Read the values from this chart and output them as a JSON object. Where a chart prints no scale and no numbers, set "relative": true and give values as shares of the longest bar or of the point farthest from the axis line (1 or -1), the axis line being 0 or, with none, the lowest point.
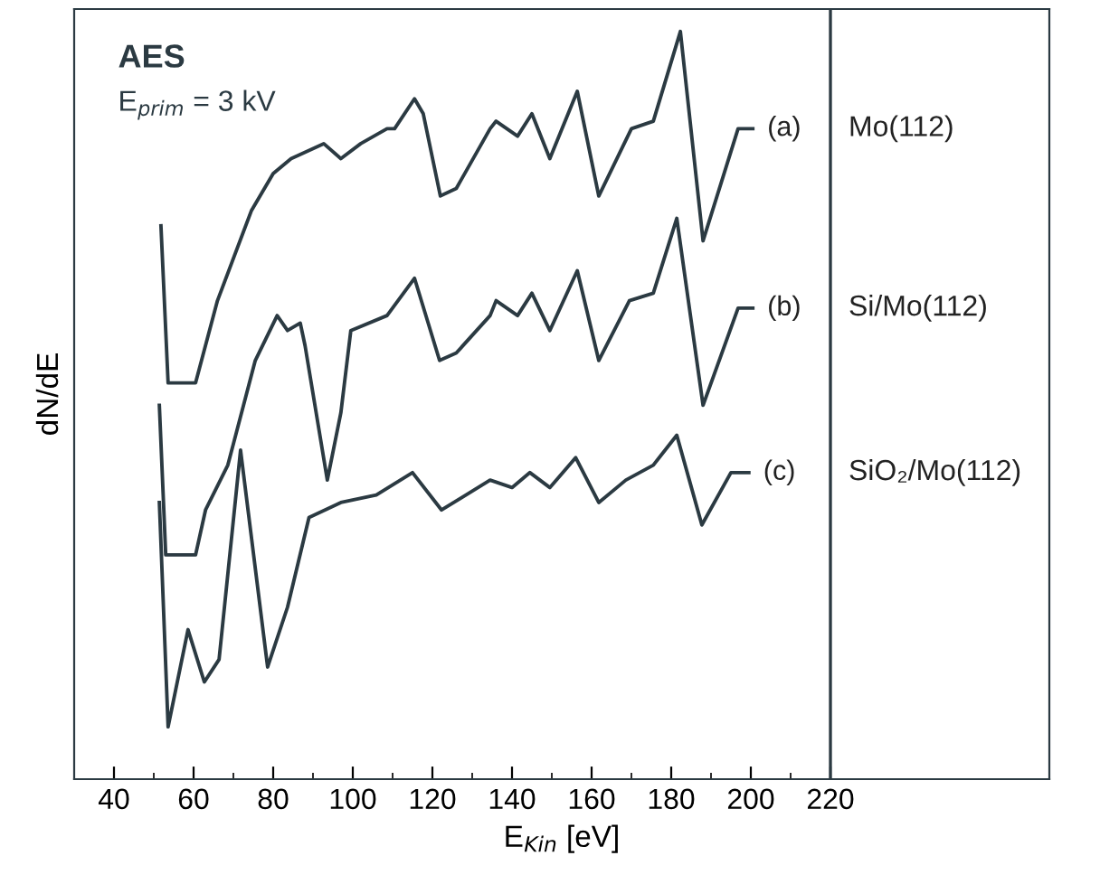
{
  "chart_data": {
    "type": "line",
    "relative": true,
    "title": "AES",
    "subtitle": "E$_{prim}$ = 3 kV",
    "xlabel": "E$_{Kin}$ [eV]",
    "ylabel": "dN/dE",
    "xlim": [
      30,
      275
    ],
    "ref_lines": [
      {
        "axis": "x",
        "value": 220
      }
    ],
    "xticks": [
      40,
      60,
      80,
      100,
      120,
      140,
      160,
      180,
      200,
      220
    ],
    "grid": false,
    "marker": "none",
    "line_style": "solid",
    "series": [
      {
        "name": "Mo(112)",
        "color": "#2b3a42",
        "x": [
          51.8,
          53.6,
          60.5,
          66,
          74.5,
          80,
          84.5,
          92.7,
          97,
          102,
          108.6,
          110.5,
          115.5,
          117.7,
          122,
          126,
          134.5,
          136,
          141.4,
          145,
          149.5,
          156.4,
          161.8,
          170,
          175.5,
          182.3,
          188,
          196.8,
          200.5
        ],
        "values": [
          0.74,
          0.53,
          0.53,
          0.64,
          0.76,
          0.81,
          0.83,
          0.85,
          0.83,
          0.85,
          0.87,
          0.87,
          0.91,
          0.89,
          0.78,
          0.79,
          0.87,
          0.88,
          0.86,
          0.89,
          0.83,
          0.92,
          0.78,
          0.87,
          0.88,
          1.0,
          0.72,
          0.87,
          0.87
        ]
      },
      {
        "name": "Si/Mo(112)",
        "color": "#2b3a42",
        "x": [
          51.4,
          53,
          60.5,
          63,
          68.6,
          75.5,
          81,
          83.6,
          86.8,
          88,
          93.6,
          97,
          99.5,
          108.6,
          115.5,
          121.8,
          126,
          134.5,
          136,
          141.4,
          145,
          149.5,
          156.4,
          161.8,
          169.5,
          175.5,
          181.4,
          188,
          196.8,
          200.5
        ],
        "values": [
          0.5,
          0.3,
          0.3,
          0.36,
          0.42,
          0.56,
          0.62,
          0.6,
          0.61,
          0.58,
          0.4,
          0.49,
          0.6,
          0.62,
          0.67,
          0.56,
          0.57,
          0.62,
          0.64,
          0.62,
          0.65,
          0.6,
          0.68,
          0.56,
          0.64,
          0.65,
          0.75,
          0.5,
          0.63,
          0.63
        ]
      },
      {
        "name": "SiO₂/Mo(112)",
        "color": "#2b3a42",
        "x": [
          51.4,
          53.6,
          58.6,
          62.7,
          66.4,
          71.8,
          78.6,
          83.6,
          89,
          97,
          105.9,
          115,
          122.3,
          134.5,
          140,
          144.5,
          149.5,
          156,
          161.8,
          168.6,
          175.5,
          181.4,
          187.7,
          195,
          199.5
        ],
        "values": [
          0.37,
          0.07,
          0.2,
          0.13,
          0.16,
          0.44,
          0.15,
          0.23,
          0.35,
          0.37,
          0.38,
          0.41,
          0.36,
          0.4,
          0.39,
          0.41,
          0.39,
          0.43,
          0.37,
          0.4,
          0.42,
          0.46,
          0.34,
          0.41,
          0.41
        ]
      }
    ],
    "annotations": [
      "(a)",
      "(b)",
      "(c)"
    ]
  }
}
